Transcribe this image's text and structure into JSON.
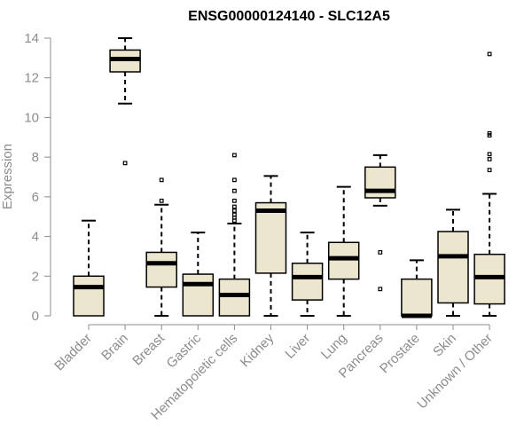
{
  "chart_data": {
    "type": "boxplot",
    "title": "ENSG00000124140 - SLC12A5",
    "ylabel": "Expression",
    "xlabel": "",
    "ylim": [
      0,
      14
    ],
    "yticks": [
      0,
      2,
      4,
      6,
      8,
      10,
      12,
      14
    ],
    "colors": {
      "box_fill": "#ede6cf",
      "box_stroke": "#000000",
      "axis": "#8c8c8c"
    },
    "categories": [
      "Bladder",
      "Brain",
      "Breast",
      "Gastric",
      "Hematopoietic cells",
      "Kidney",
      "Liver",
      "Lung",
      "Pancreas",
      "Prostate",
      "Skin",
      "Unknown / Other"
    ],
    "boxes": [
      {
        "category": "Bladder",
        "whisker_low": 0.0,
        "q1": 0.0,
        "median": 1.45,
        "q3": 2.0,
        "whisker_high": 4.8,
        "outliers": []
      },
      {
        "category": "Brain",
        "whisker_low": 10.7,
        "q1": 12.3,
        "median": 12.95,
        "q3": 13.4,
        "whisker_high": 14.0,
        "outliers": [
          7.7
        ]
      },
      {
        "category": "Breast",
        "whisker_low": 0.0,
        "q1": 1.45,
        "median": 2.65,
        "q3": 3.2,
        "whisker_high": 5.6,
        "outliers": [
          5.8,
          6.85
        ]
      },
      {
        "category": "Gastric",
        "whisker_low": 0.0,
        "q1": 0.0,
        "median": 1.6,
        "q3": 2.1,
        "whisker_high": 4.2,
        "outliers": []
      },
      {
        "category": "Hematopoietic cells",
        "whisker_low": 0.0,
        "q1": 0.0,
        "median": 1.05,
        "q3": 1.85,
        "whisker_high": 4.65,
        "outliers": [
          4.8,
          4.95,
          5.1,
          5.3,
          5.5,
          5.8,
          6.3,
          6.85,
          8.1
        ]
      },
      {
        "category": "Kidney",
        "whisker_low": 0.0,
        "q1": 2.15,
        "median": 5.3,
        "q3": 5.7,
        "whisker_high": 7.05,
        "outliers": []
      },
      {
        "category": "Liver",
        "whisker_low": 0.0,
        "q1": 0.8,
        "median": 1.95,
        "q3": 2.65,
        "whisker_high": 4.2,
        "outliers": []
      },
      {
        "category": "Lung",
        "whisker_low": 0.0,
        "q1": 1.85,
        "median": 2.9,
        "q3": 3.7,
        "whisker_high": 6.5,
        "outliers": []
      },
      {
        "category": "Pancreas",
        "whisker_low": 5.55,
        "q1": 5.95,
        "median": 6.3,
        "q3": 7.5,
        "whisker_high": 8.1,
        "outliers": [
          1.35,
          3.2
        ]
      },
      {
        "category": "Prostate",
        "whisker_low": 0.0,
        "q1": 0.0,
        "median": 0.0,
        "q3": 1.85,
        "whisker_high": 2.8,
        "outliers": []
      },
      {
        "category": "Skin",
        "whisker_low": 0.0,
        "q1": 0.65,
        "median": 3.0,
        "q3": 4.25,
        "whisker_high": 5.35,
        "outliers": []
      },
      {
        "category": "Unknown / Other",
        "whisker_low": 0.0,
        "q1": 0.6,
        "median": 1.95,
        "q3": 3.1,
        "whisker_high": 6.15,
        "outliers": [
          7.35,
          7.9,
          8.15,
          9.1,
          9.2,
          13.2
        ]
      }
    ]
  }
}
